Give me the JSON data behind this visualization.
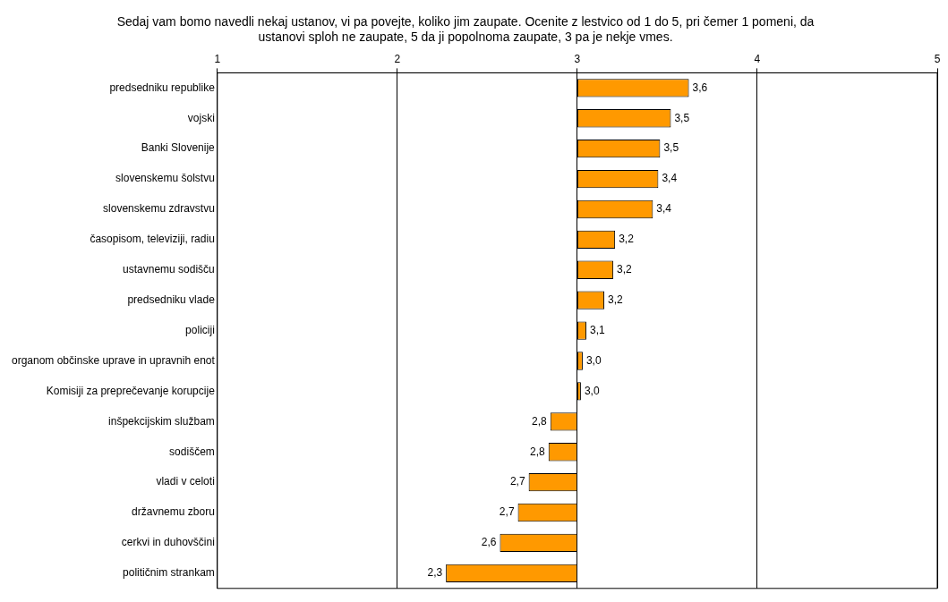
{
  "chart_data": {
    "type": "bar",
    "orientation": "horizontal",
    "title": "Sedaj vam bomo navedli nekaj ustanov, vi pa povejte, koliko jim zaupate. Ocenite z lestvico od 1 do 5, pri čemer 1 pomeni, da ustanovi sploh ne zaupate, 5 da ji popolnoma zaupate, 3 pa je nekje vmes.",
    "categories": [
      "predsedniku republike",
      "vojski",
      "Banki Slovenije",
      "slovenskemu šolstvu",
      "slovenskemu zdravstvu",
      "časopisom, televiziji, radiu",
      "ustavnemu sodišču",
      "predsedniku vlade",
      "policiji",
      "organom občinske uprave in upravnih enot",
      "Komisiji za preprečevanje korupcije",
      "inšpekcijskim službam",
      "sodiščem",
      "vladi v celoti",
      "državnemu zboru",
      "cerkvi in duhovščini",
      "političnim strankam"
    ],
    "base": [
      3,
      3,
      3,
      3,
      3,
      3,
      3,
      3,
      3,
      3,
      3,
      3,
      3,
      3,
      3,
      3,
      3
    ],
    "values": [
      0.62,
      0.52,
      0.46,
      0.45,
      0.42,
      0.21,
      0.2,
      0.15,
      0.05,
      0.03,
      0.02,
      -0.15,
      -0.16,
      -0.27,
      -0.33,
      -0.43,
      -0.73
    ],
    "value_labels": [
      "3,6",
      "3,5",
      "3,5",
      "3,4",
      "3,4",
      "3,2",
      "3,2",
      "3,2",
      "3,1",
      "3,0",
      "3,0",
      "2,8",
      "2,8",
      "2,7",
      "2,7",
      "2,6",
      "2,3"
    ],
    "color": "#ff9900",
    "xlim": [
      1,
      5
    ],
    "xticks": [
      1,
      2,
      3,
      4,
      5
    ],
    "grid": "x",
    "legend": false
  }
}
